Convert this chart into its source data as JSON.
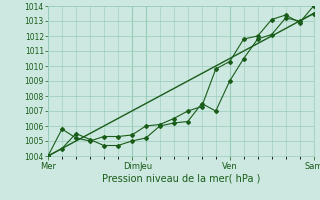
{
  "title": "Pression niveau de la mer( hPa )",
  "bg_color": "#cce8e0",
  "grid_color": "#99ccbb",
  "line_color": "#1a5c1a",
  "ylim": [
    1004,
    1014
  ],
  "yticks": [
    1004,
    1005,
    1006,
    1007,
    1008,
    1009,
    1010,
    1011,
    1012,
    1013,
    1014
  ],
  "xtick_labels": [
    "Mer",
    "Dim",
    "Jeu",
    "Ven",
    "Sam"
  ],
  "xtick_positions": [
    0,
    6,
    7,
    13,
    19
  ],
  "line1_x": [
    0,
    1,
    2,
    3,
    4,
    5,
    6,
    7,
    8,
    9,
    10,
    11,
    12,
    13,
    14,
    15,
    16,
    17,
    18,
    19
  ],
  "line1_y": [
    1004.0,
    1004.5,
    1005.5,
    1005.1,
    1004.7,
    1004.7,
    1005.0,
    1005.2,
    1006.0,
    1006.2,
    1006.3,
    1007.5,
    1007.0,
    1009.0,
    1010.5,
    1011.8,
    1012.1,
    1013.2,
    1013.0,
    1013.5
  ],
  "line2_x": [
    0,
    1,
    2,
    3,
    4,
    5,
    6,
    7,
    8,
    9,
    10,
    11,
    12,
    13,
    14,
    15,
    16,
    17,
    18,
    19
  ],
  "line2_y": [
    1004.0,
    1005.8,
    1005.2,
    1005.0,
    1005.3,
    1005.3,
    1005.4,
    1006.0,
    1006.1,
    1006.5,
    1007.0,
    1007.3,
    1009.8,
    1010.3,
    1011.8,
    1012.0,
    1013.1,
    1013.4,
    1012.9,
    1014.0
  ],
  "line3_x": [
    0,
    19
  ],
  "line3_y": [
    1004.0,
    1013.5
  ]
}
